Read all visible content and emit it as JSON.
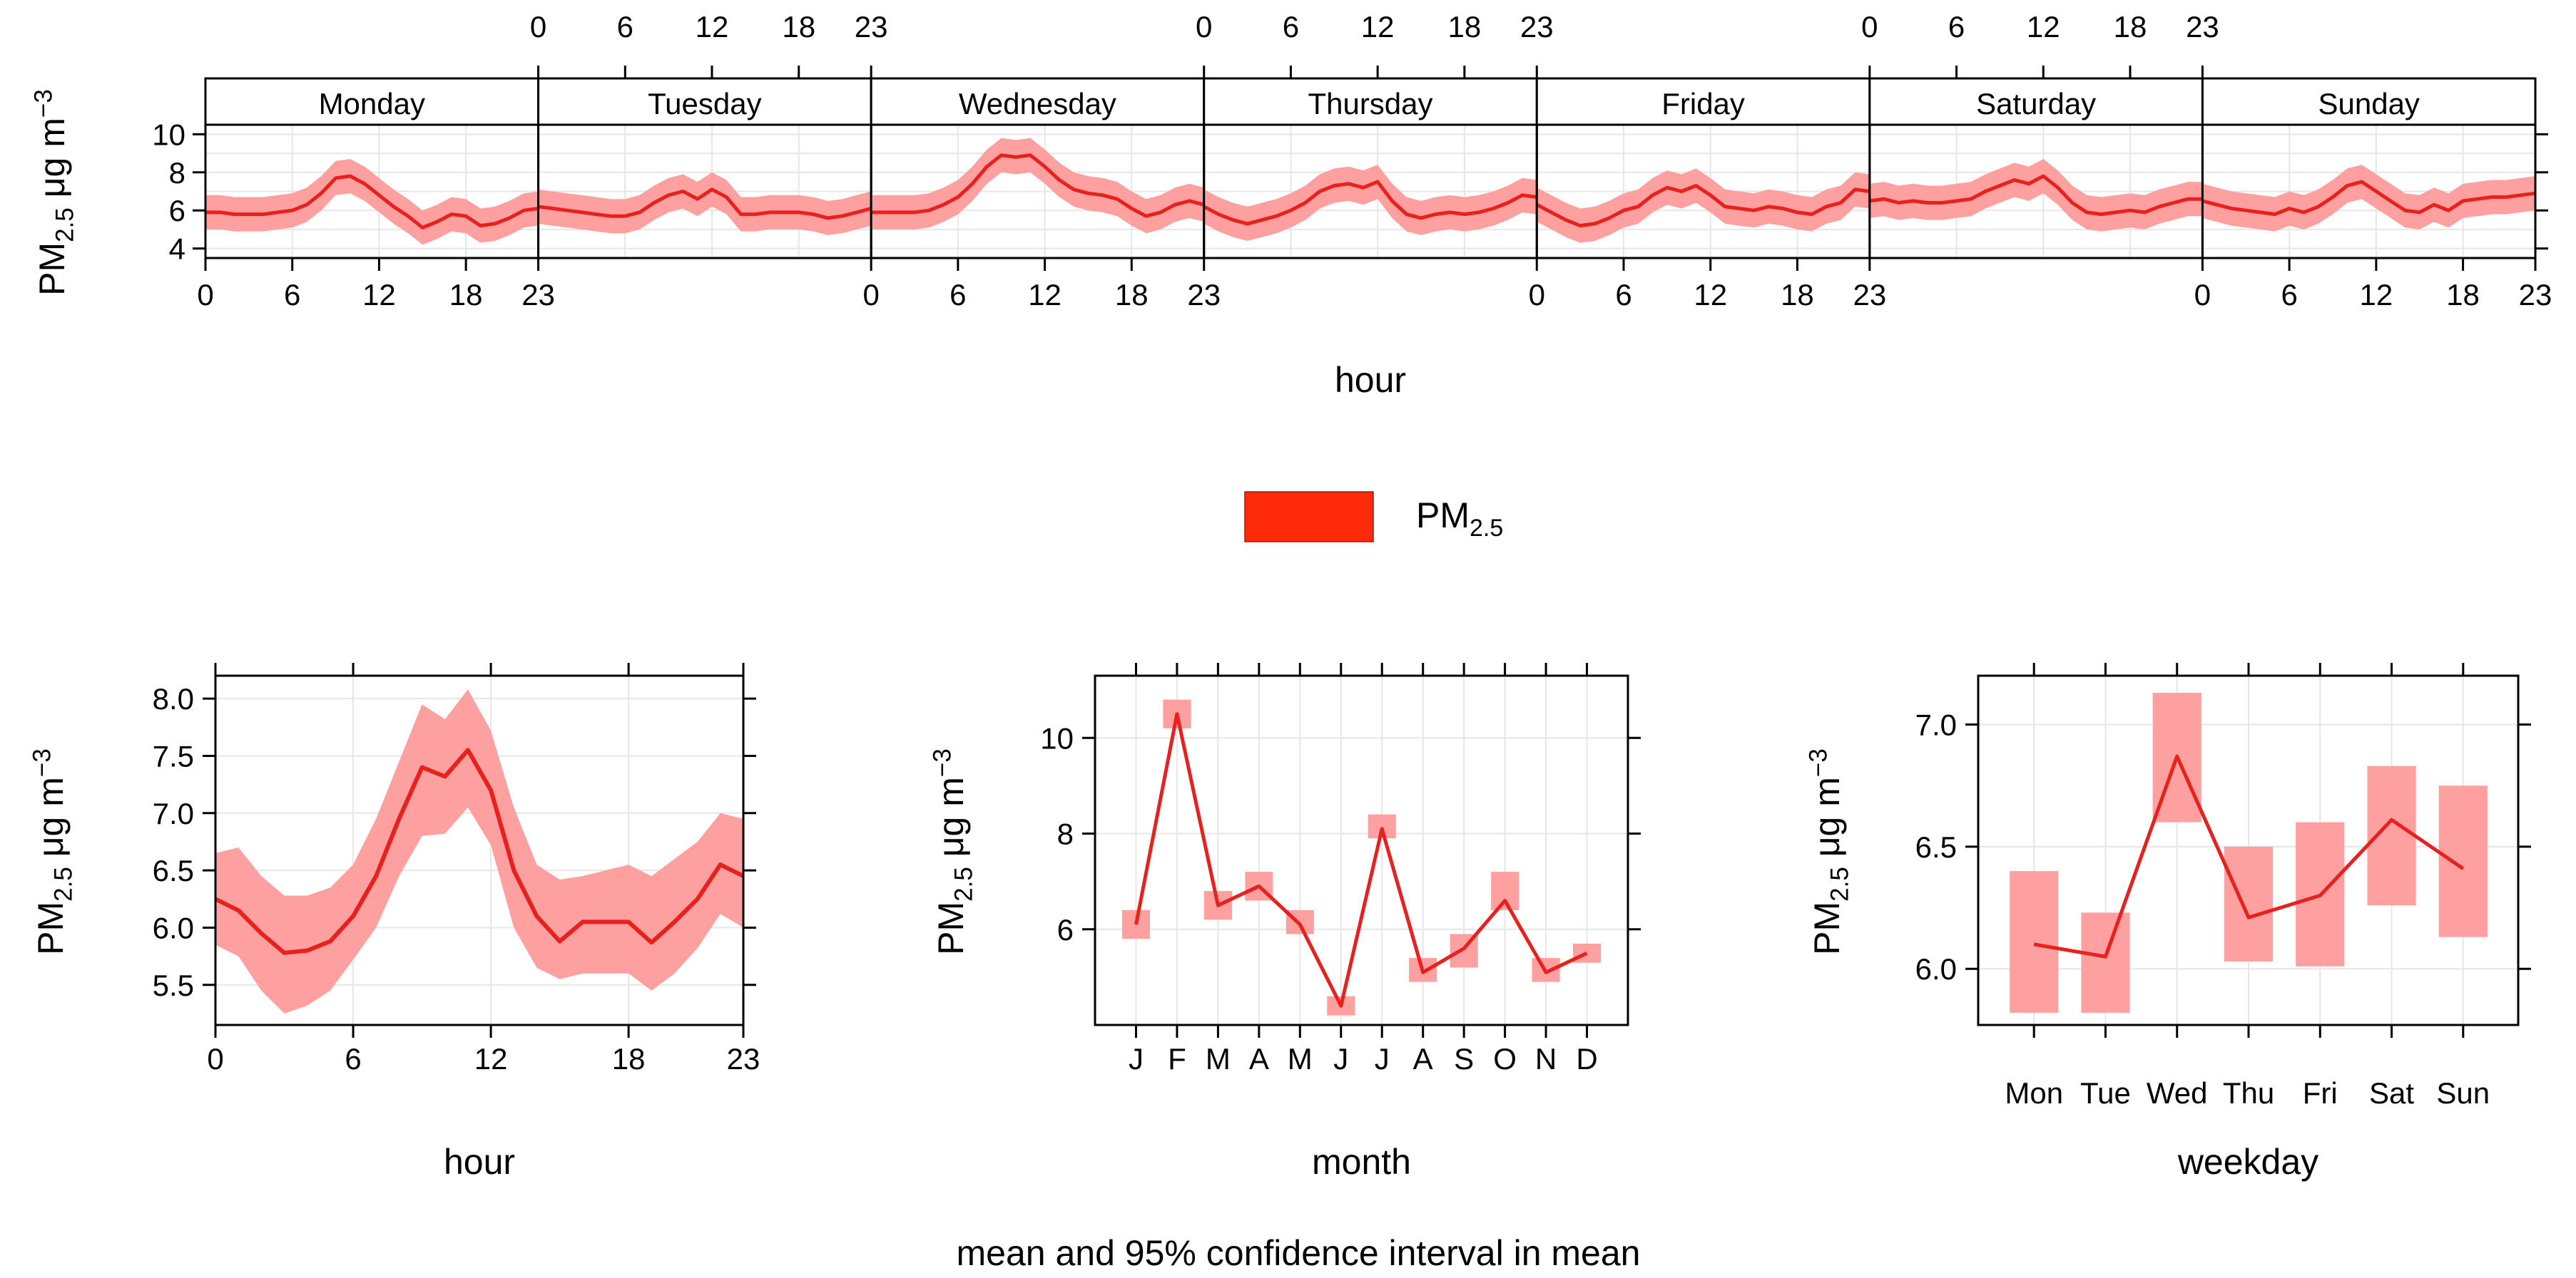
{
  "chart_data": [
    {
      "type": "area",
      "panel": "weekly-hourly",
      "days": [
        "Monday",
        "Tuesday",
        "Wednesday",
        "Thursday",
        "Friday",
        "Saturday",
        "Sunday"
      ],
      "x_ticks": [
        "0",
        "6",
        "12",
        "18",
        "23"
      ],
      "xlabel": "hour",
      "ylabel": {
        "base": "PM",
        "sub": "2.5",
        "unit": " μg m",
        "sup": "−3"
      },
      "y_ticks": [
        "4",
        "6",
        "8",
        "10"
      ],
      "ylim": [
        3.5,
        10.5
      ],
      "grid": true,
      "series": [
        {
          "name": "PM2.5",
          "mean": {
            "Monday": [
              5.9,
              5.9,
              5.8,
              5.8,
              5.8,
              5.9,
              6.0,
              6.3,
              6.9,
              7.7,
              7.8,
              7.4,
              6.8,
              6.2,
              5.7,
              5.1,
              5.4,
              5.8,
              5.7,
              5.2,
              5.3,
              5.6,
              6.0,
              6.1
            ],
            "Tuesday": [
              6.2,
              6.1,
              6.0,
              5.9,
              5.8,
              5.7,
              5.7,
              5.9,
              6.4,
              6.8,
              7.0,
              6.6,
              7.1,
              6.7,
              5.8,
              5.8,
              5.9,
              5.9,
              5.9,
              5.8,
              5.6,
              5.7,
              5.9,
              6.1
            ],
            "Wednesday": [
              5.9,
              5.9,
              5.9,
              5.9,
              6.0,
              6.3,
              6.7,
              7.4,
              8.3,
              8.9,
              8.8,
              8.9,
              8.3,
              7.6,
              7.1,
              6.9,
              6.8,
              6.6,
              6.1,
              5.7,
              5.9,
              6.3,
              6.5,
              6.3
            ],
            "Thursday": [
              6.2,
              5.8,
              5.5,
              5.3,
              5.5,
              5.7,
              6.0,
              6.4,
              7.0,
              7.3,
              7.4,
              7.2,
              7.5,
              6.5,
              5.8,
              5.6,
              5.8,
              5.9,
              5.8,
              5.9,
              6.1,
              6.4,
              6.8,
              6.7
            ],
            "Friday": [
              6.3,
              5.9,
              5.5,
              5.2,
              5.3,
              5.6,
              6.0,
              6.2,
              6.8,
              7.2,
              7.0,
              7.3,
              6.8,
              6.2,
              6.1,
              6.0,
              6.2,
              6.1,
              5.9,
              5.8,
              6.2,
              6.4,
              7.1,
              7.0
            ],
            "Saturday": [
              6.5,
              6.6,
              6.4,
              6.5,
              6.4,
              6.4,
              6.5,
              6.6,
              7.0,
              7.3,
              7.6,
              7.4,
              7.8,
              7.2,
              6.4,
              5.9,
              5.8,
              5.9,
              6.0,
              5.9,
              6.2,
              6.4,
              6.6,
              6.6
            ],
            "Sunday": [
              6.5,
              6.3,
              6.1,
              6.0,
              5.9,
              5.8,
              6.1,
              5.9,
              6.2,
              6.7,
              7.3,
              7.5,
              7.0,
              6.5,
              6.0,
              5.9,
              6.3,
              6.0,
              6.5,
              6.6,
              6.7,
              6.7,
              6.8,
              6.9
            ]
          },
          "ci_half_width": 0.9
        }
      ]
    },
    {
      "type": "area",
      "panel": "hour",
      "xlabel": "hour",
      "x_ticks": [
        "0",
        "6",
        "12",
        "18",
        "23"
      ],
      "ylabel": {
        "base": "PM",
        "sub": "2.5",
        "unit": " μg m",
        "sup": "−3"
      },
      "y_ticks": [
        "5.5",
        "6.0",
        "6.5",
        "7.0",
        "7.5",
        "8.0"
      ],
      "ylim": [
        5.15,
        8.2
      ],
      "x": [
        0,
        1,
        2,
        3,
        4,
        5,
        6,
        7,
        8,
        9,
        10,
        11,
        12,
        13,
        14,
        15,
        16,
        17,
        18,
        19,
        20,
        21,
        22,
        23
      ],
      "mean": [
        6.25,
        6.15,
        5.95,
        5.78,
        5.8,
        5.88,
        6.1,
        6.45,
        6.95,
        7.4,
        7.32,
        7.55,
        7.2,
        6.5,
        6.1,
        5.88,
        6.05,
        6.05,
        6.05,
        5.87,
        6.05,
        6.25,
        6.55,
        6.45
      ],
      "lower": [
        5.85,
        5.75,
        5.45,
        5.25,
        5.32,
        5.45,
        5.72,
        6.0,
        6.45,
        6.8,
        6.82,
        7.05,
        6.72,
        6.0,
        5.65,
        5.55,
        5.6,
        5.6,
        5.6,
        5.45,
        5.6,
        5.82,
        6.12,
        6.0
      ],
      "upper": [
        6.65,
        6.7,
        6.45,
        6.28,
        6.28,
        6.35,
        6.55,
        6.95,
        7.45,
        7.95,
        7.82,
        8.08,
        7.72,
        7.05,
        6.55,
        6.42,
        6.45,
        6.5,
        6.55,
        6.45,
        6.6,
        6.75,
        7.0,
        6.95
      ]
    },
    {
      "type": "line",
      "panel": "month",
      "xlabel": "month",
      "categories": [
        "J",
        "F",
        "M",
        "A",
        "M",
        "J",
        "J",
        "A",
        "S",
        "O",
        "N",
        "D"
      ],
      "ylabel": {
        "base": "PM",
        "sub": "2.5",
        "unit": " μg m",
        "sup": "−3"
      },
      "y_ticks": [
        "6",
        "8",
        "10"
      ],
      "ylim": [
        4.0,
        11.3
      ],
      "mean": [
        6.1,
        10.5,
        6.5,
        6.9,
        6.1,
        4.4,
        8.1,
        5.1,
        5.6,
        6.6,
        5.1,
        5.5
      ],
      "lower": [
        5.8,
        10.2,
        6.2,
        6.6,
        5.9,
        4.2,
        7.9,
        4.9,
        5.2,
        6.4,
        4.9,
        5.3
      ],
      "upper": [
        6.4,
        10.8,
        6.8,
        7.2,
        6.4,
        4.6,
        8.4,
        5.4,
        5.9,
        7.2,
        5.4,
        5.7
      ]
    },
    {
      "type": "line",
      "panel": "weekday",
      "xlabel": "weekday",
      "categories": [
        "Mon",
        "Tue",
        "Wed",
        "Thu",
        "Fri",
        "Sat",
        "Sun"
      ],
      "ylabel": {
        "base": "PM",
        "sub": "2.5",
        "unit": " μg m",
        "sup": "−3"
      },
      "y_ticks": [
        "6.0",
        "6.5",
        "7.0"
      ],
      "ylim": [
        5.77,
        7.2
      ],
      "mean": [
        6.1,
        6.05,
        6.87,
        6.21,
        6.3,
        6.61,
        6.41
      ],
      "lower": [
        5.82,
        5.82,
        6.6,
        6.03,
        6.01,
        6.26,
        6.13
      ],
      "upper": [
        6.4,
        6.23,
        7.13,
        6.5,
        6.6,
        6.83,
        6.75
      ]
    }
  ],
  "legend": {
    "base": "PM",
    "sub": "2.5",
    "color": "#ff2a0a"
  },
  "footer": "mean and 95% confidence interval in mean",
  "colors": {
    "line": "#e8201e",
    "band": "#ffa0a0",
    "grid": "#e6e6e6",
    "axis": "#000000"
  }
}
